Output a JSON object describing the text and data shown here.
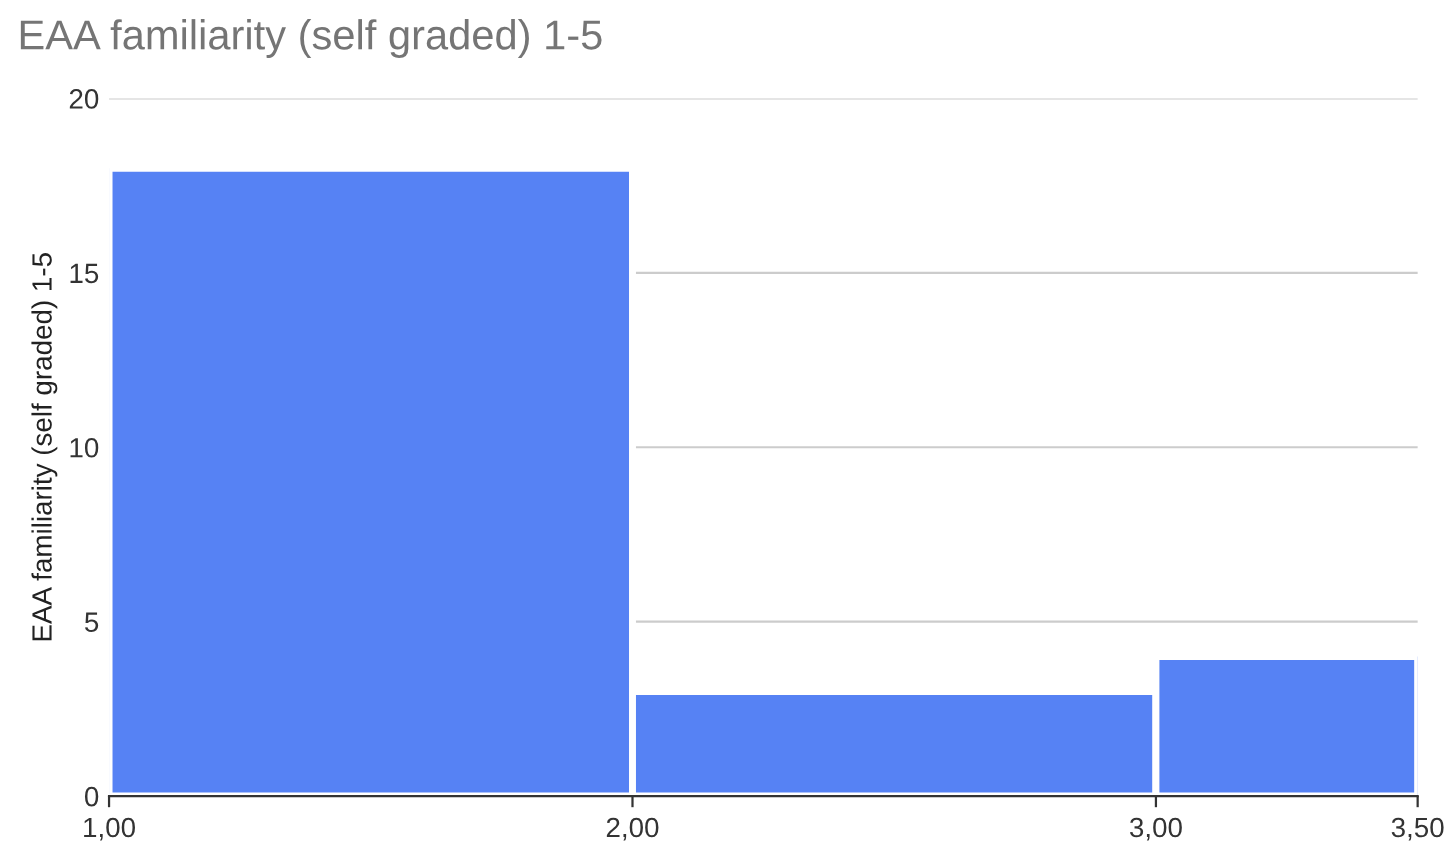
{
  "chart_data": {
    "type": "histogram",
    "title": "EAA familiarity (self graded) 1-5",
    "ylabel": "EAA familiarity (self graded) 1-5",
    "bins": [
      1,
      2,
      3,
      3.5
    ],
    "values": [
      18,
      3,
      4
    ],
    "color": "#5682f4",
    "xlim": [
      1,
      3.5
    ],
    "xticks": [
      {
        "value": 1,
        "label": "1,00"
      },
      {
        "value": 2,
        "label": "2,00"
      },
      {
        "value": 3,
        "label": "3,00"
      },
      {
        "value": 3.5,
        "label": "3,50"
      }
    ],
    "ylim": [
      0,
      20
    ],
    "yticks": [
      0,
      5,
      10,
      15,
      20
    ],
    "grid": "y"
  }
}
